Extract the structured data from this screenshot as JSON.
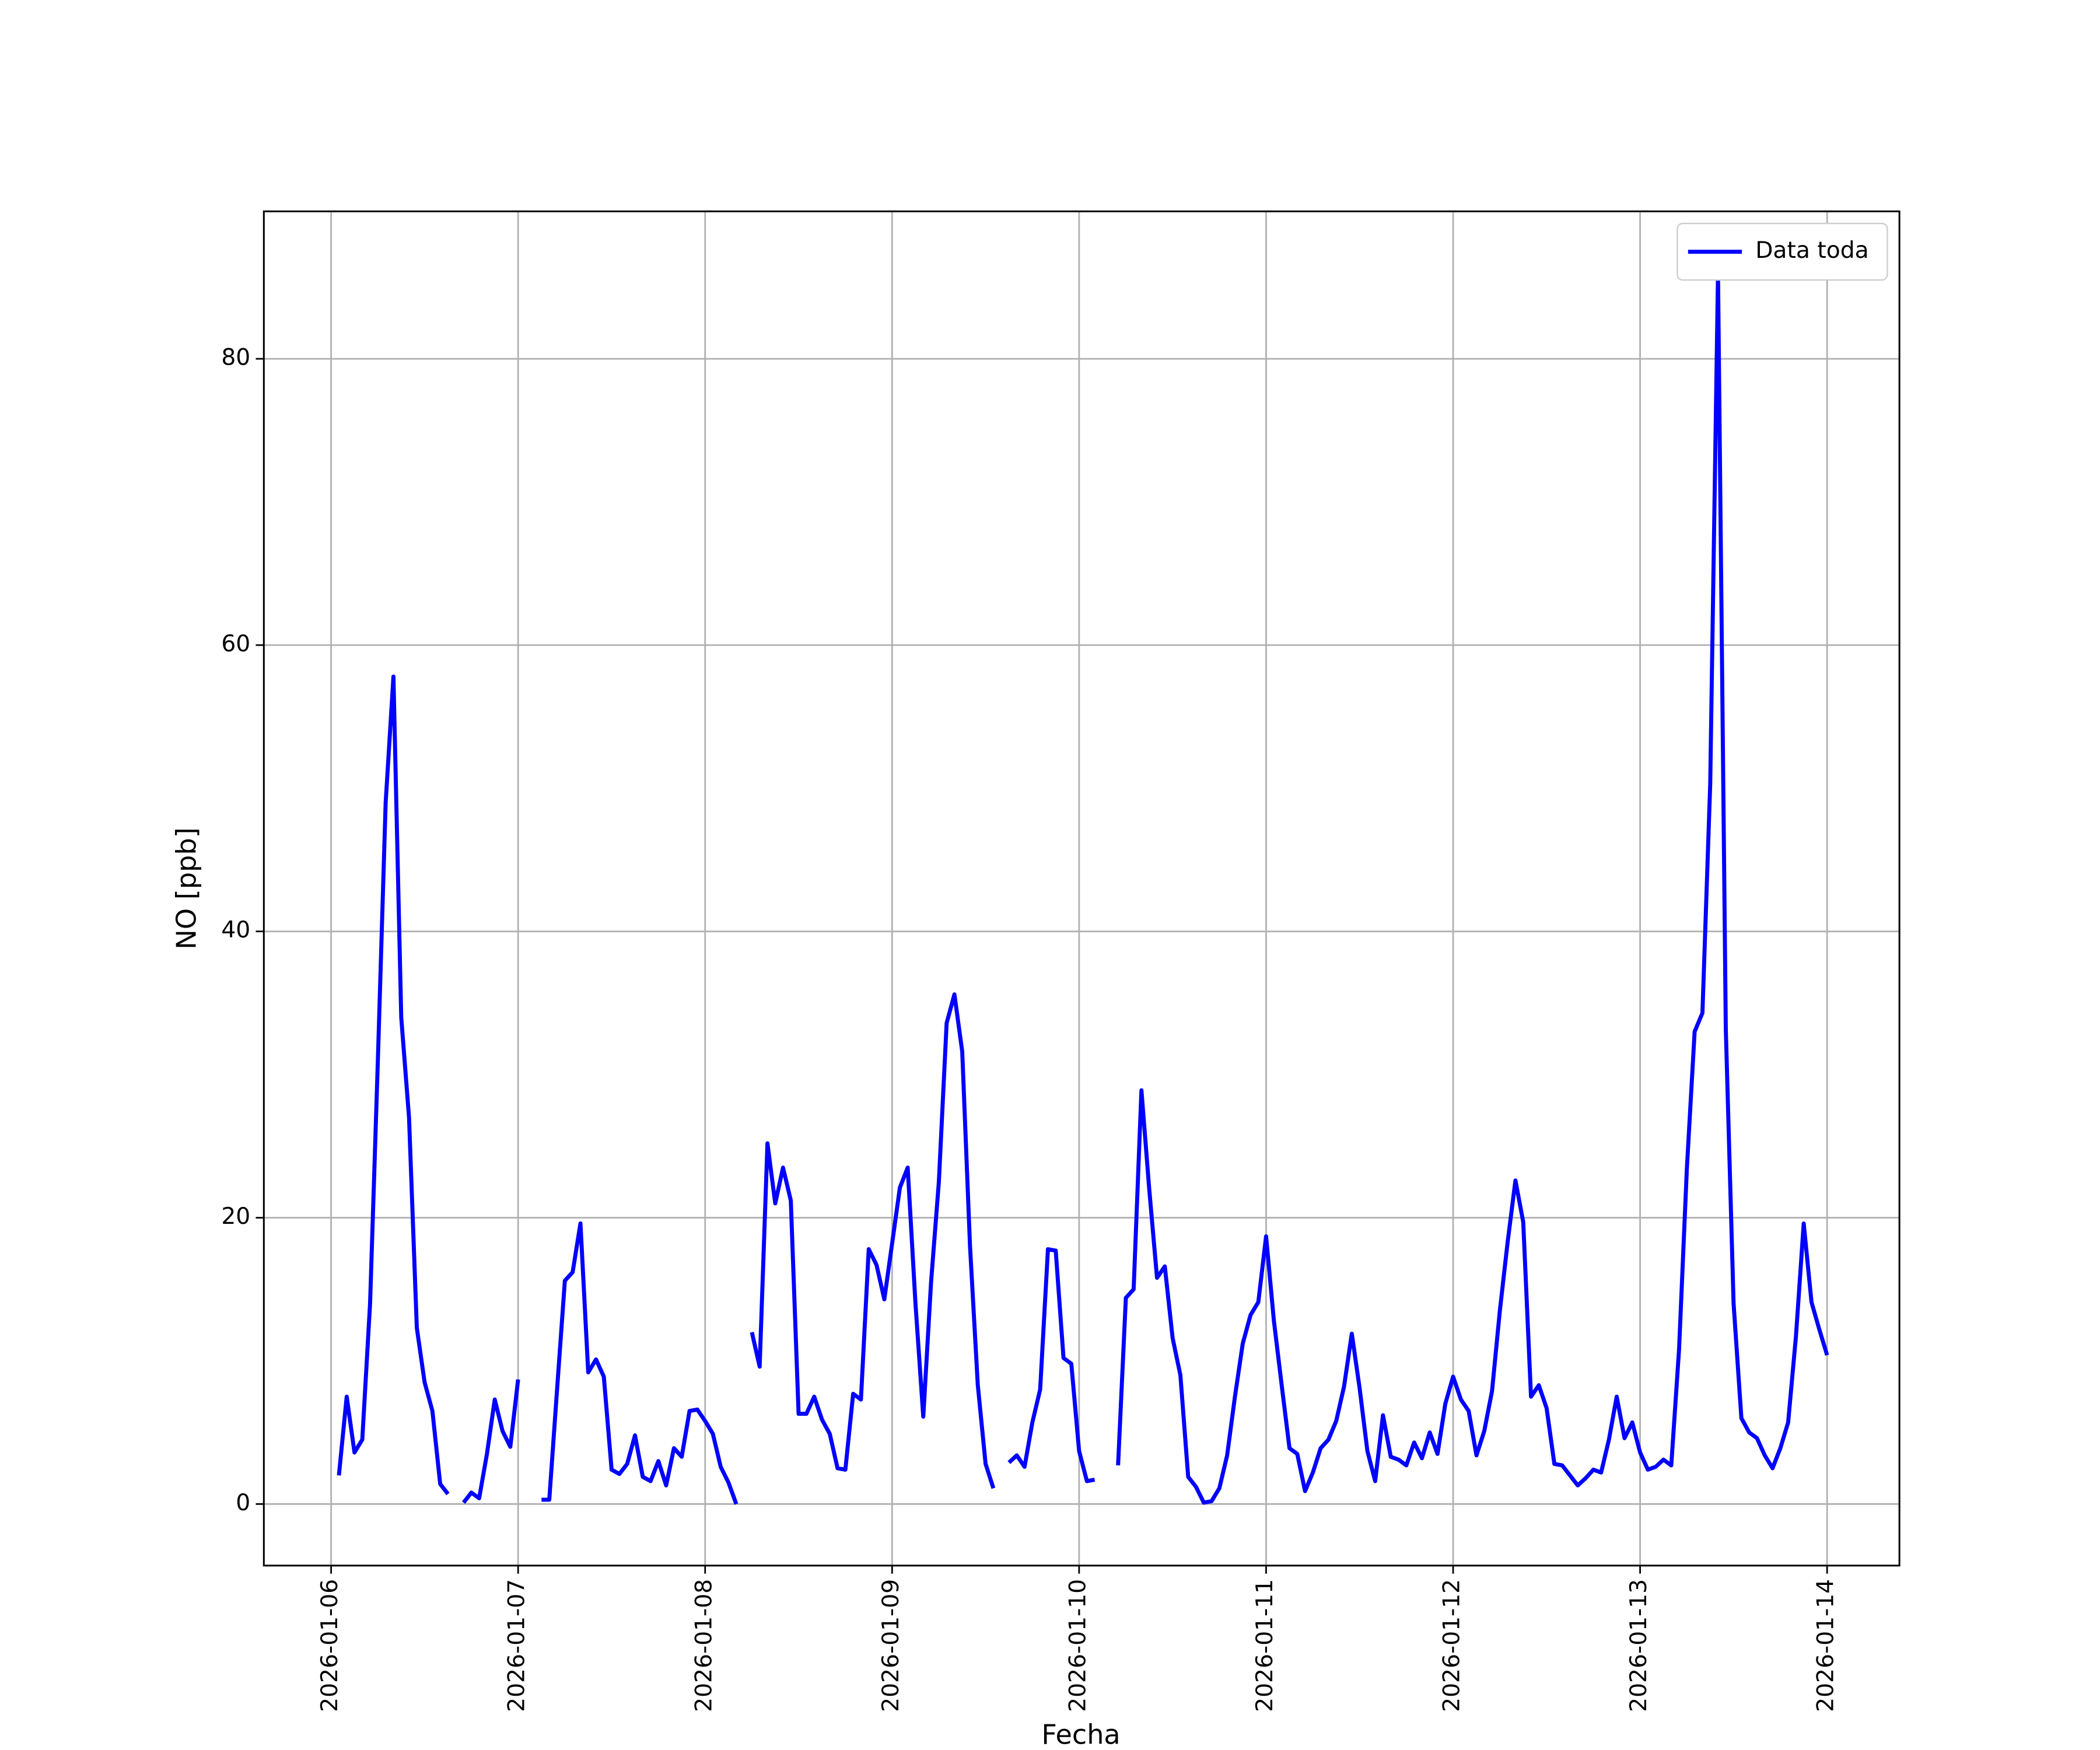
{
  "chart_data": {
    "type": "line",
    "xlabel": "Fecha",
    "ylabel": "NO [ppb]",
    "x": [
      "2026-01-06 01:00",
      "2026-01-06 02:00",
      "2026-01-06 03:00",
      "2026-01-06 04:00",
      "2026-01-06 05:00",
      "2026-01-06 06:00",
      "2026-01-06 07:00",
      "2026-01-06 08:00",
      "2026-01-06 09:00",
      "2026-01-06 10:00",
      "2026-01-06 11:00",
      "2026-01-06 12:00",
      "2026-01-06 13:00",
      "2026-01-06 14:00",
      "2026-01-06 15:00",
      "2026-01-06 16:00",
      "2026-01-06 17:00",
      "2026-01-06 18:00",
      "2026-01-06 19:00",
      "2026-01-06 20:00",
      "2026-01-06 21:00",
      "2026-01-06 22:00",
      "2026-01-06 23:00",
      "2026-01-07 00:00",
      "2026-01-07 01:00",
      "2026-01-07 02:00",
      "2026-01-07 03:00",
      "2026-01-07 04:00",
      "2026-01-07 05:00",
      "2026-01-07 06:00",
      "2026-01-07 07:00",
      "2026-01-07 08:00",
      "2026-01-07 09:00",
      "2026-01-07 10:00",
      "2026-01-07 11:00",
      "2026-01-07 12:00",
      "2026-01-07 13:00",
      "2026-01-07 14:00",
      "2026-01-07 15:00",
      "2026-01-07 16:00",
      "2026-01-07 17:00",
      "2026-01-07 18:00",
      "2026-01-07 19:00",
      "2026-01-07 20:00",
      "2026-01-07 21:00",
      "2026-01-07 22:00",
      "2026-01-07 23:00",
      "2026-01-08 00:00",
      "2026-01-08 01:00",
      "2026-01-08 02:00",
      "2026-01-08 03:00",
      "2026-01-08 04:00",
      "2026-01-08 05:00",
      "2026-01-08 06:00",
      "2026-01-08 07:00",
      "2026-01-08 08:00",
      "2026-01-08 09:00",
      "2026-01-08 10:00",
      "2026-01-08 11:00",
      "2026-01-08 12:00",
      "2026-01-08 13:00",
      "2026-01-08 14:00",
      "2026-01-08 15:00",
      "2026-01-08 16:00",
      "2026-01-08 17:00",
      "2026-01-08 18:00",
      "2026-01-08 19:00",
      "2026-01-08 20:00",
      "2026-01-08 21:00",
      "2026-01-08 22:00",
      "2026-01-08 23:00",
      "2026-01-09 00:00",
      "2026-01-09 01:00",
      "2026-01-09 02:00",
      "2026-01-09 03:00",
      "2026-01-09 04:00",
      "2026-01-09 05:00",
      "2026-01-09 06:00",
      "2026-01-09 07:00",
      "2026-01-09 08:00",
      "2026-01-09 09:00",
      "2026-01-09 10:00",
      "2026-01-09 11:00",
      "2026-01-09 12:00",
      "2026-01-09 13:00",
      "2026-01-09 14:00",
      "2026-01-09 15:00",
      "2026-01-09 16:00",
      "2026-01-09 17:00",
      "2026-01-09 18:00",
      "2026-01-09 19:00",
      "2026-01-09 20:00",
      "2026-01-09 21:00",
      "2026-01-09 22:00",
      "2026-01-09 23:00",
      "2026-01-10 00:00",
      "2026-01-10 01:00",
      "2026-01-10 02:00",
      "2026-01-10 03:00",
      "2026-01-10 04:00",
      "2026-01-10 05:00",
      "2026-01-10 06:00",
      "2026-01-10 07:00",
      "2026-01-10 08:00",
      "2026-01-10 09:00",
      "2026-01-10 10:00",
      "2026-01-10 11:00",
      "2026-01-10 12:00",
      "2026-01-10 13:00",
      "2026-01-10 14:00",
      "2026-01-10 15:00",
      "2026-01-10 16:00",
      "2026-01-10 17:00",
      "2026-01-10 18:00",
      "2026-01-10 19:00",
      "2026-01-10 20:00",
      "2026-01-10 21:00",
      "2026-01-10 22:00",
      "2026-01-10 23:00",
      "2026-01-11 00:00",
      "2026-01-11 01:00",
      "2026-01-11 02:00",
      "2026-01-11 03:00",
      "2026-01-11 04:00",
      "2026-01-11 05:00",
      "2026-01-11 06:00",
      "2026-01-11 07:00",
      "2026-01-11 08:00",
      "2026-01-11 09:00",
      "2026-01-11 10:00",
      "2026-01-11 11:00",
      "2026-01-11 12:00",
      "2026-01-11 13:00",
      "2026-01-11 14:00",
      "2026-01-11 15:00",
      "2026-01-11 16:00",
      "2026-01-11 17:00",
      "2026-01-11 18:00",
      "2026-01-11 19:00",
      "2026-01-11 20:00",
      "2026-01-11 21:00",
      "2026-01-11 22:00",
      "2026-01-11 23:00",
      "2026-01-12 00:00",
      "2026-01-12 01:00",
      "2026-01-12 02:00",
      "2026-01-12 03:00",
      "2026-01-12 04:00",
      "2026-01-12 05:00",
      "2026-01-12 06:00",
      "2026-01-12 07:00",
      "2026-01-12 08:00",
      "2026-01-12 09:00",
      "2026-01-12 10:00",
      "2026-01-12 11:00",
      "2026-01-12 12:00",
      "2026-01-12 13:00",
      "2026-01-12 14:00",
      "2026-01-12 15:00",
      "2026-01-12 16:00",
      "2026-01-12 17:00",
      "2026-01-12 18:00",
      "2026-01-12 19:00",
      "2026-01-12 20:00",
      "2026-01-12 21:00",
      "2026-01-12 22:00",
      "2026-01-12 23:00",
      "2026-01-13 00:00",
      "2026-01-13 01:00",
      "2026-01-13 02:00",
      "2026-01-13 03:00",
      "2026-01-13 04:00",
      "2026-01-13 05:00",
      "2026-01-13 06:00",
      "2026-01-13 07:00",
      "2026-01-13 08:00",
      "2026-01-13 09:00",
      "2026-01-13 10:00",
      "2026-01-13 11:00",
      "2026-01-13 12:00",
      "2026-01-13 13:00",
      "2026-01-13 14:00",
      "2026-01-13 15:00",
      "2026-01-13 16:00",
      "2026-01-13 17:00",
      "2026-01-13 18:00",
      "2026-01-13 19:00",
      "2026-01-13 20:00",
      "2026-01-13 21:00",
      "2026-01-13 22:00",
      "2026-01-13 23:00",
      "2026-01-14 00:00"
    ],
    "series": [
      {
        "name": "Data toda",
        "color": "#0000ff",
        "values": [
          2.0,
          7.5,
          3.6,
          4.5,
          14,
          31,
          49,
          57.8,
          34,
          27,
          12.3,
          8.5,
          6.5,
          1.4,
          0.7,
          null,
          0.1,
          0.8,
          0.4,
          3.5,
          7.3,
          5.1,
          4.0,
          8.7,
          null,
          null,
          0.3,
          0.3,
          8.0,
          15.6,
          16.2,
          19.6,
          9.2,
          10.1,
          8.9,
          2.4,
          2.1,
          2.8,
          4.8,
          1.9,
          1.6,
          3.0,
          1.3,
          3.9,
          3.3,
          6.5,
          6.6,
          5.8,
          4.9,
          2.6,
          1.5,
          0.0,
          null,
          12.0,
          9.6,
          25.2,
          21.0,
          23.5,
          21.2,
          6.3,
          6.3,
          7.5,
          5.9,
          4.9,
          2.5,
          2.4,
          7.7,
          7.3,
          17.8,
          16.7,
          14.3,
          18.2,
          22.1,
          23.5,
          14,
          6.1,
          15.5,
          22.5,
          33.6,
          35.6,
          31.6,
          18,
          8.3,
          2.8,
          1.1,
          null,
          2.9,
          3.4,
          2.6,
          5.7,
          8.0,
          17.8,
          17.7,
          10.2,
          9.8,
          3.7,
          1.6,
          1.7,
          null,
          null,
          2.7,
          14.4,
          15.0,
          28.9,
          22,
          15.8,
          16.6,
          11.6,
          9.0,
          1.9,
          1.2,
          0.1,
          0.2,
          1.1,
          3.4,
          7.5,
          11.2,
          13.2,
          14.1,
          18.7,
          12.8,
          8.3,
          3.9,
          3.5,
          0.9,
          2.2,
          3.9,
          4.5,
          5.8,
          8.2,
          11.9,
          8.1,
          3.7,
          1.6,
          6.2,
          3.3,
          3.1,
          2.7,
          4.3,
          3.2,
          5.0,
          3.5,
          7.0,
          8.9,
          7.3,
          6.5,
          3.4,
          5.1,
          7.9,
          13.5,
          18.3,
          22.6,
          19.7,
          7.5,
          8.3,
          6.7,
          2.8,
          2.7,
          2.0,
          1.3,
          1.8,
          2.4,
          2.2,
          4.5,
          7.5,
          4.6,
          5.7,
          3.6,
          2.4,
          2.6,
          3.1,
          2.7,
          10.8,
          23.4,
          33.0,
          34.3,
          50.3,
          86.0,
          33.2,
          14.0,
          6.0,
          5.0,
          4.6,
          3.4,
          2.5,
          3.9,
          5.7,
          11.7,
          19.6,
          14.1,
          12.2,
          10.4
        ]
      }
    ],
    "xlim": [
      "2026-01-05 15:22",
      "2026-01-14 09:17"
    ],
    "xticks": [
      "2026-01-06",
      "2026-01-07",
      "2026-01-08",
      "2026-01-09",
      "2026-01-10",
      "2026-01-11",
      "2026-01-12",
      "2026-01-13",
      "2026-01-14"
    ],
    "ylim": [
      -4.3,
      90.3
    ],
    "yticks": [
      0,
      20,
      40,
      60,
      80
    ],
    "grid": true,
    "legend": "upper right"
  }
}
